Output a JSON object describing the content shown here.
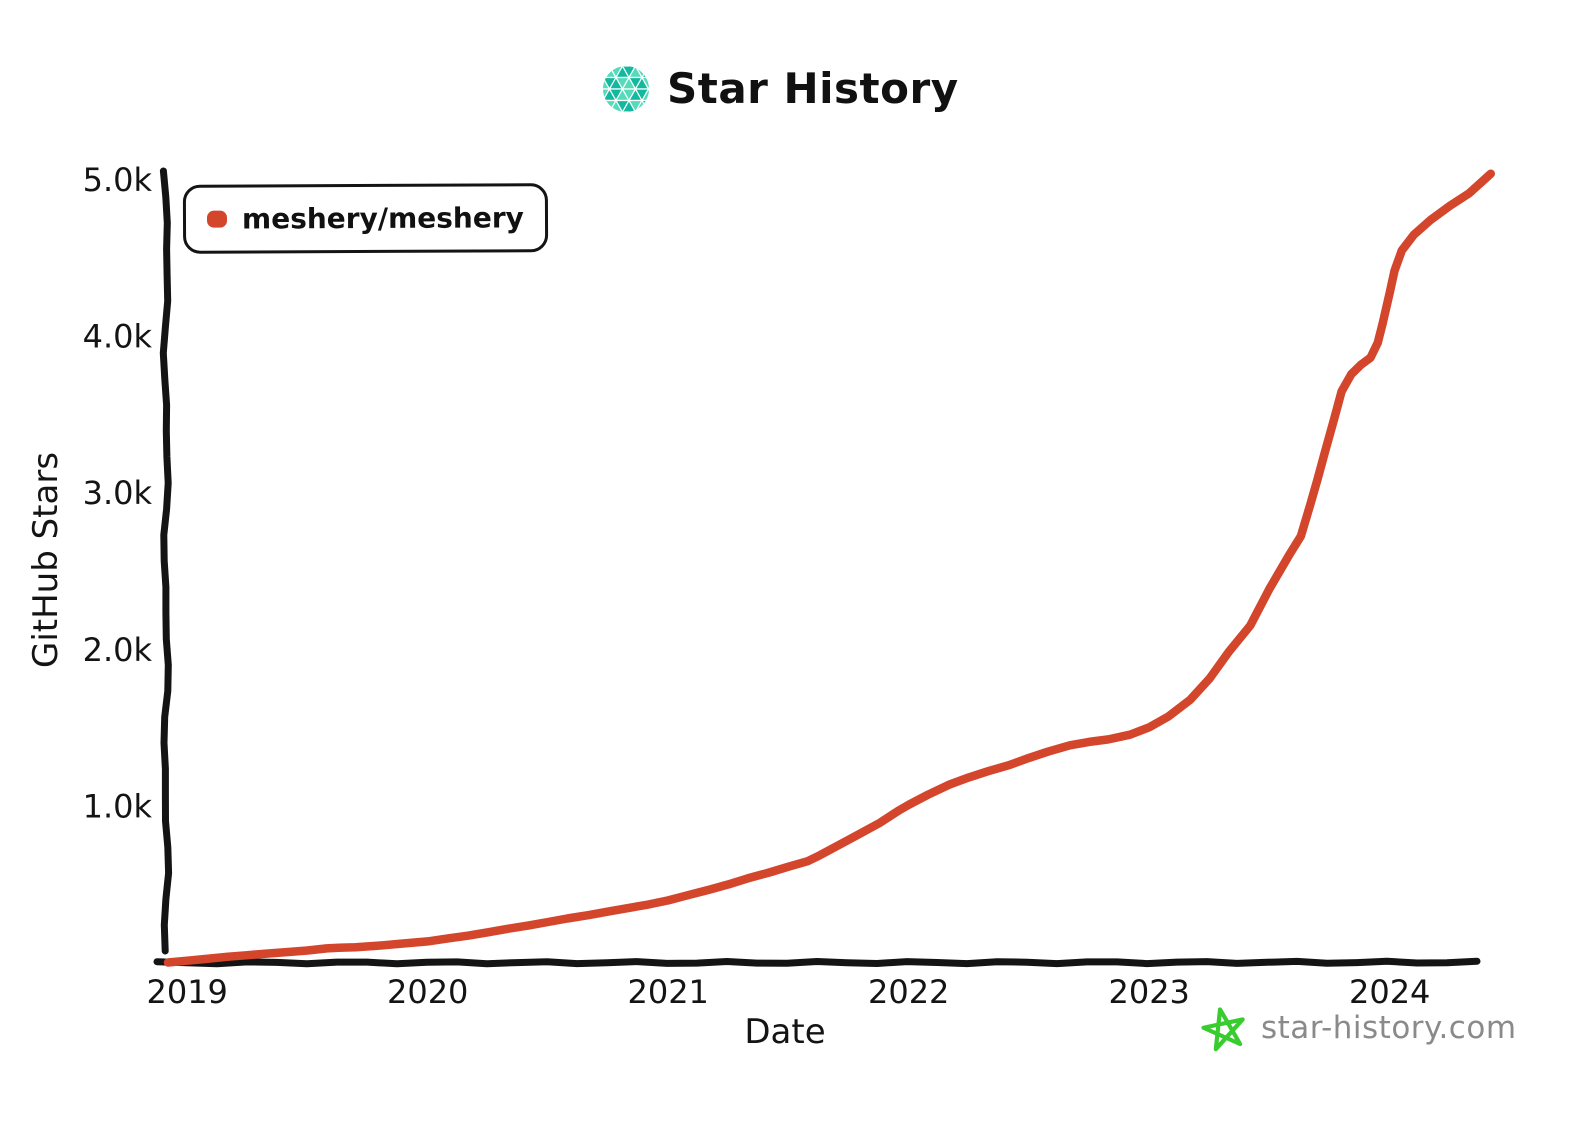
{
  "header": {
    "title": "Star History"
  },
  "legend": {
    "items": [
      {
        "label": "meshery/meshery",
        "color": "#D4462C"
      }
    ]
  },
  "footer": {
    "site": "star-history.com"
  },
  "colors": {
    "series_red": "#D4462C",
    "logo_teal_dark": "#12B99E",
    "logo_teal_light": "#55DBB9",
    "footer_green": "#38CC2E",
    "footer_gray": "#8A8A8A",
    "ink": "#141414"
  },
  "chart_data": {
    "type": "line",
    "title": "Star History",
    "xlabel": "Date",
    "ylabel": "GitHub Stars",
    "x_range": [
      2018.92,
      2024.45
    ],
    "y_range": [
      0,
      5100
    ],
    "grid": false,
    "legend_position": "top-left",
    "x_ticks": [
      {
        "label": "2019",
        "year": 2019
      },
      {
        "label": "2020",
        "year": 2020
      },
      {
        "label": "2021",
        "year": 2021
      },
      {
        "label": "2022",
        "year": 2022
      },
      {
        "label": "2023",
        "year": 2023
      },
      {
        "label": "2024",
        "year": 2024
      }
    ],
    "y_ticks": [
      {
        "label": "1.0k",
        "value": 1000
      },
      {
        "label": "2.0k",
        "value": 2000
      },
      {
        "label": "3.0k",
        "value": 3000
      },
      {
        "label": "4.0k",
        "value": 4000
      },
      {
        "label": "5.0k",
        "value": 5000
      }
    ],
    "series": [
      {
        "name": "meshery/meshery",
        "color": "#D4462C",
        "points": [
          [
            2018.92,
            3
          ],
          [
            2019.0,
            15
          ],
          [
            2019.08,
            26
          ],
          [
            2019.17,
            40
          ],
          [
            2019.25,
            50
          ],
          [
            2019.33,
            60
          ],
          [
            2019.42,
            70
          ],
          [
            2019.5,
            80
          ],
          [
            2019.58,
            93
          ],
          [
            2019.63,
            97
          ],
          [
            2019.7,
            100
          ],
          [
            2019.79,
            110
          ],
          [
            2019.88,
            122
          ],
          [
            2020.0,
            138
          ],
          [
            2020.08,
            156
          ],
          [
            2020.17,
            175
          ],
          [
            2020.25,
            196
          ],
          [
            2020.33,
            218
          ],
          [
            2020.42,
            240
          ],
          [
            2020.5,
            262
          ],
          [
            2020.58,
            284
          ],
          [
            2020.67,
            306
          ],
          [
            2020.75,
            328
          ],
          [
            2020.83,
            350
          ],
          [
            2020.92,
            374
          ],
          [
            2021.0,
            400
          ],
          [
            2021.08,
            432
          ],
          [
            2021.17,
            468
          ],
          [
            2021.25,
            502
          ],
          [
            2021.33,
            540
          ],
          [
            2021.42,
            578
          ],
          [
            2021.5,
            615
          ],
          [
            2021.58,
            650
          ],
          [
            2021.63,
            688
          ],
          [
            2021.7,
            745
          ],
          [
            2021.79,
            820
          ],
          [
            2021.88,
            895
          ],
          [
            2021.96,
            975
          ],
          [
            2022.0,
            1010
          ],
          [
            2022.08,
            1075
          ],
          [
            2022.17,
            1140
          ],
          [
            2022.25,
            1185
          ],
          [
            2022.33,
            1225
          ],
          [
            2022.42,
            1265
          ],
          [
            2022.5,
            1310
          ],
          [
            2022.58,
            1350
          ],
          [
            2022.67,
            1390
          ],
          [
            2022.75,
            1412
          ],
          [
            2022.83,
            1428
          ],
          [
            2022.92,
            1458
          ],
          [
            2023.0,
            1505
          ],
          [
            2023.08,
            1575
          ],
          [
            2023.17,
            1680
          ],
          [
            2023.25,
            1815
          ],
          [
            2023.33,
            1985
          ],
          [
            2023.42,
            2155
          ],
          [
            2023.5,
            2390
          ],
          [
            2023.58,
            2600
          ],
          [
            2023.63,
            2725
          ],
          [
            2023.67,
            2930
          ],
          [
            2023.7,
            3090
          ],
          [
            2023.73,
            3260
          ],
          [
            2023.77,
            3480
          ],
          [
            2023.8,
            3650
          ],
          [
            2023.84,
            3760
          ],
          [
            2023.88,
            3820
          ],
          [
            2023.92,
            3865
          ],
          [
            2023.95,
            3960
          ],
          [
            2023.97,
            4080
          ],
          [
            2024.0,
            4280
          ],
          [
            2024.02,
            4420
          ],
          [
            2024.05,
            4550
          ],
          [
            2024.1,
            4650
          ],
          [
            2024.17,
            4745
          ],
          [
            2024.25,
            4835
          ],
          [
            2024.33,
            4915
          ],
          [
            2024.42,
            5040
          ]
        ]
      }
    ]
  }
}
